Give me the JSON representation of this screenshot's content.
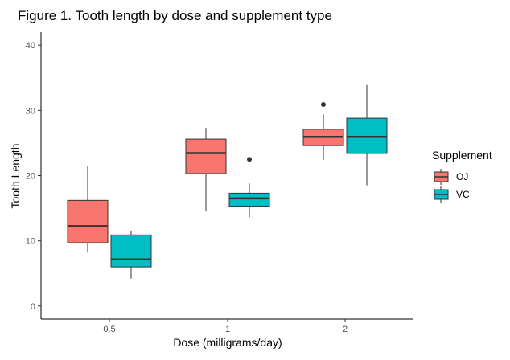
{
  "chart_data": {
    "type": "boxplot",
    "title": "Figure 1. Tooth length by dose and supplement type",
    "xlabel": "Dose (milligrams/day)",
    "ylabel": "Tooth Length",
    "categories": [
      "0.5",
      "1",
      "2"
    ],
    "ylim": [
      -2,
      42
    ],
    "yticks": [
      0,
      10,
      20,
      30,
      40
    ],
    "grid": false,
    "legend": {
      "title": "Supplement",
      "placement": "right"
    },
    "series": [
      {
        "name": "OJ",
        "color": "#F8766D",
        "boxes": [
          {
            "category": "0.5",
            "lower_whisker": 8.2,
            "q1": 9.7,
            "median": 12.25,
            "q3": 16.2,
            "upper_whisker": 21.5,
            "outliers": []
          },
          {
            "category": "1",
            "lower_whisker": 14.5,
            "q1": 20.3,
            "median": 23.45,
            "q3": 25.6,
            "upper_whisker": 27.3,
            "outliers": []
          },
          {
            "category": "2",
            "lower_whisker": 22.4,
            "q1": 24.6,
            "median": 25.95,
            "q3": 27.1,
            "upper_whisker": 29.4,
            "outliers": [
              30.9
            ]
          }
        ]
      },
      {
        "name": "VC",
        "color": "#00BFC4",
        "boxes": [
          {
            "category": "0.5",
            "lower_whisker": 4.2,
            "q1": 6.0,
            "median": 7.15,
            "q3": 10.9,
            "upper_whisker": 11.5,
            "outliers": []
          },
          {
            "category": "1",
            "lower_whisker": 13.6,
            "q1": 15.3,
            "median": 16.5,
            "q3": 17.3,
            "upper_whisker": 18.8,
            "outliers": [
              22.5
            ]
          },
          {
            "category": "2",
            "lower_whisker": 18.5,
            "q1": 23.4,
            "median": 25.95,
            "q3": 28.8,
            "upper_whisker": 33.9,
            "outliers": []
          }
        ]
      }
    ]
  }
}
